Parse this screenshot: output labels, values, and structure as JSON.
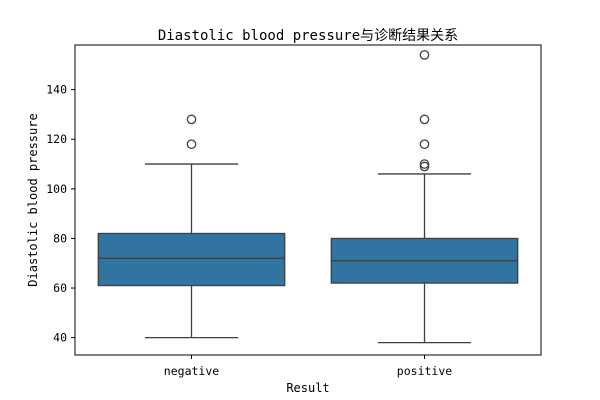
{
  "chart_data": {
    "type": "box",
    "title": "Diastolic blood pressure与诊断结果关系",
    "xlabel": "Result",
    "ylabel": "Diastolic blood pressure",
    "categories": [
      "negative",
      "positive"
    ],
    "ylim": [
      33,
      158
    ],
    "yticks": [
      40,
      60,
      80,
      100,
      120,
      140
    ],
    "grid": false,
    "box_color": "#3274a1",
    "line_color": "#3f3f3f",
    "boxes": [
      {
        "category": "negative",
        "whisker_low": 40,
        "q1": 61,
        "median": 72,
        "q3": 82,
        "whisker_high": 110,
        "outliers": [
          118,
          128
        ]
      },
      {
        "category": "positive",
        "whisker_low": 38,
        "q1": 62,
        "median": 71,
        "q3": 80,
        "whisker_high": 106,
        "outliers": [
          109,
          110,
          118,
          128,
          154
        ]
      }
    ]
  }
}
